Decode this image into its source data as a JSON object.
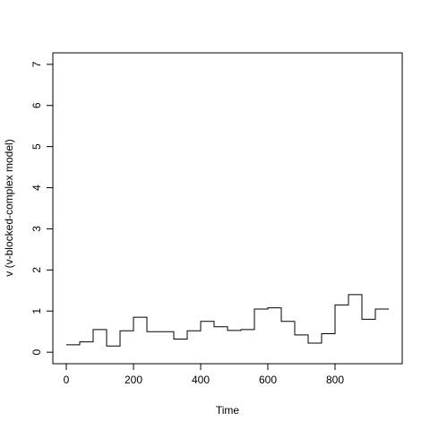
{
  "chart_data": {
    "type": "line",
    "step": true,
    "title": "",
    "xlabel": "Time",
    "ylabel": "v (v-blocked-complex model)",
    "xlim": [
      -40,
      1000
    ],
    "ylim": [
      -0.28,
      7.28
    ],
    "xticks": [
      0,
      200,
      400,
      600,
      800
    ],
    "yticks": [
      0,
      1,
      2,
      3,
      4,
      5,
      6,
      7
    ],
    "grid": false,
    "series": [
      {
        "steps": [
          {
            "x0": 0,
            "x1": 40,
            "y": 0.18
          },
          {
            "x0": 40,
            "x1": 80,
            "y": 0.25
          },
          {
            "x0": 80,
            "x1": 120,
            "y": 0.55
          },
          {
            "x0": 120,
            "x1": 160,
            "y": 0.15
          },
          {
            "x0": 160,
            "x1": 200,
            "y": 0.52
          },
          {
            "x0": 200,
            "x1": 240,
            "y": 0.85
          },
          {
            "x0": 240,
            "x1": 320,
            "y": 0.5
          },
          {
            "x0": 320,
            "x1": 360,
            "y": 0.32
          },
          {
            "x0": 360,
            "x1": 400,
            "y": 0.52
          },
          {
            "x0": 400,
            "x1": 440,
            "y": 0.75
          },
          {
            "x0": 440,
            "x1": 480,
            "y": 0.62
          },
          {
            "x0": 480,
            "x1": 520,
            "y": 0.53
          },
          {
            "x0": 520,
            "x1": 560,
            "y": 0.55
          },
          {
            "x0": 560,
            "x1": 600,
            "y": 1.05
          },
          {
            "x0": 600,
            "x1": 640,
            "y": 1.08
          },
          {
            "x0": 640,
            "x1": 680,
            "y": 0.75
          },
          {
            "x0": 680,
            "x1": 720,
            "y": 0.42
          },
          {
            "x0": 720,
            "x1": 760,
            "y": 0.22
          },
          {
            "x0": 760,
            "x1": 800,
            "y": 0.45
          },
          {
            "x0": 800,
            "x1": 840,
            "y": 1.15
          },
          {
            "x0": 840,
            "x1": 880,
            "y": 1.4
          },
          {
            "x0": 880,
            "x1": 920,
            "y": 0.8
          },
          {
            "x0": 920,
            "x1": 960,
            "y": 1.05
          }
        ]
      }
    ]
  }
}
